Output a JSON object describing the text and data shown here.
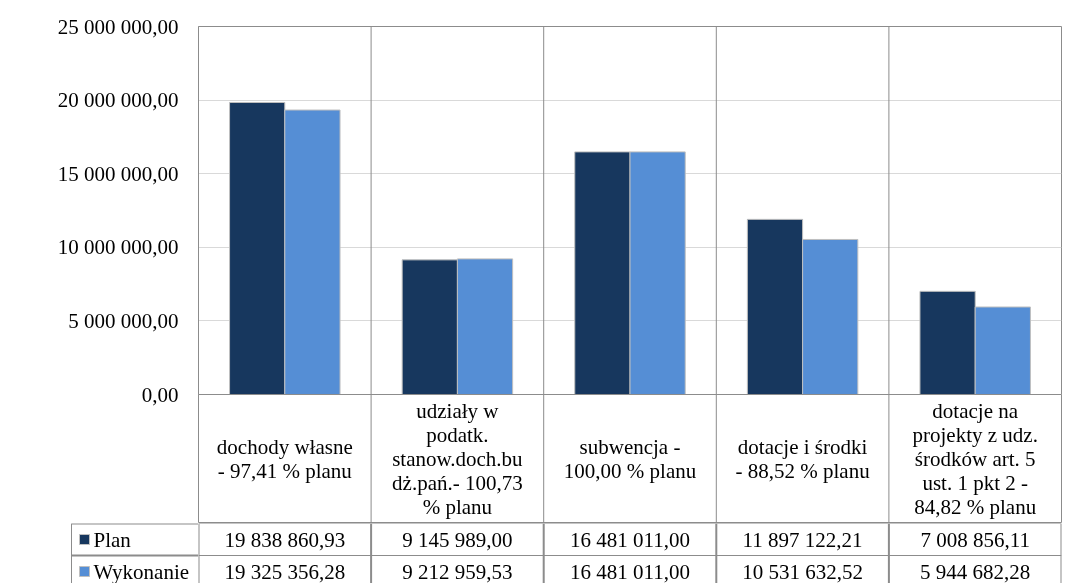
{
  "chart_data": {
    "type": "bar",
    "categories": [
      "dochody własne\n- 97,41 % planu",
      "udziały w\npodatk.\nstanow.doch.bu\ndż.pań.- 100,73\n% planu",
      "subwencja -\n100,00 % planu",
      "dotacje i środki\n- 88,52 % planu",
      "dotacje na\nprojekty z udz.\nśrodków art. 5\nust. 1 pkt 2 -\n84,82 % planu"
    ],
    "series": [
      {
        "name": "Plan",
        "color": "#17375e",
        "values": [
          19838860.93,
          9145989.0,
          16481011.0,
          11897122.21,
          7008856.11
        ],
        "value_labels": [
          "19 838 860,93",
          "9 145 989,00",
          "16 481 011,00",
          "11 897 122,21",
          "7 008 856,11"
        ]
      },
      {
        "name": "Wykonanie",
        "color": "#558ed5",
        "values": [
          19325356.28,
          9212959.53,
          16481011.0,
          10531632.52,
          5944682.28
        ],
        "value_labels": [
          "19 325 356,28",
          "9 212 959,53",
          "16 481 011,00",
          "10 531 632,52",
          "5 944 682,28"
        ]
      }
    ],
    "ylim": [
      0,
      25000000
    ],
    "yticks": [
      {
        "value": 0,
        "label": "0,00"
      },
      {
        "value": 5000000,
        "label": "5 000 000,00"
      },
      {
        "value": 10000000,
        "label": "10 000 000,00"
      },
      {
        "value": 15000000,
        "label": "15 000 000,00"
      },
      {
        "value": 20000000,
        "label": "20 000 000,00"
      },
      {
        "value": 25000000,
        "label": "25 000 000,00"
      }
    ],
    "grid": "y",
    "legend": "bottom left"
  }
}
